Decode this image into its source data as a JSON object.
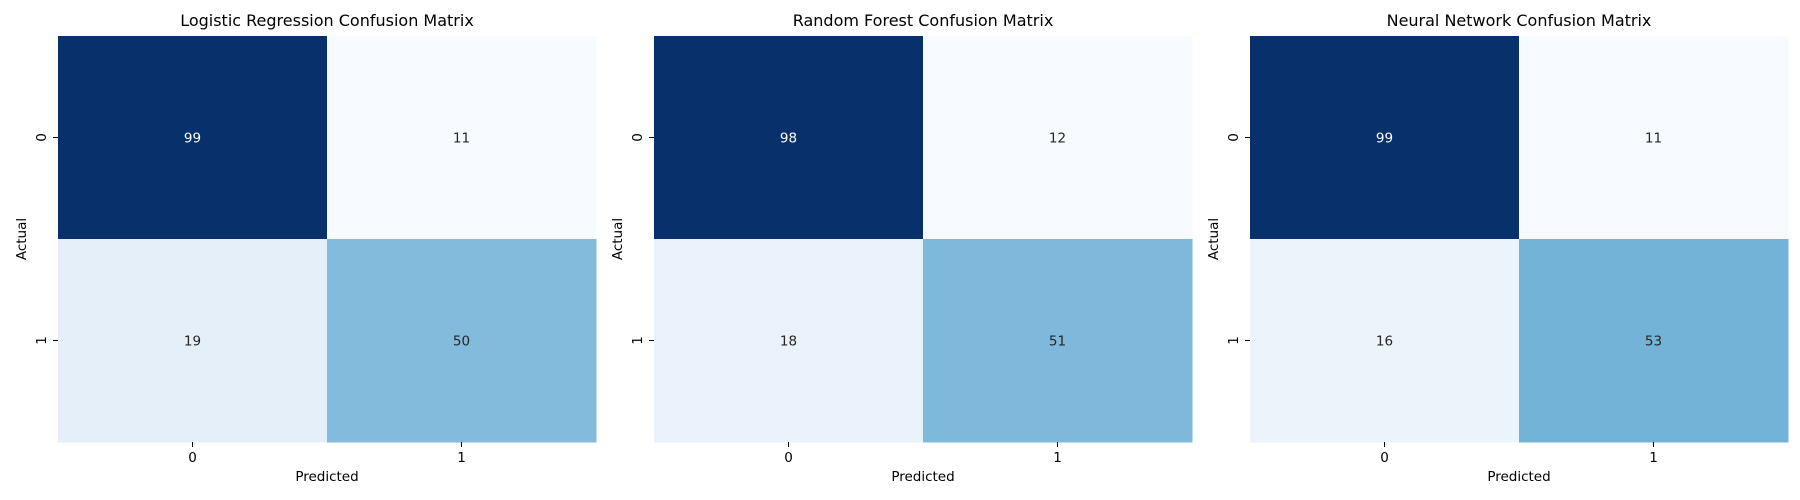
{
  "chart_data": [
    {
      "type": "heatmap",
      "title": "Logistic Regression Confusion Matrix",
      "xlabel": "Predicted",
      "ylabel": "Actual",
      "x_categories": [
        "0",
        "1"
      ],
      "y_categories": [
        "0",
        "1"
      ],
      "values": [
        [
          99,
          11
        ],
        [
          19,
          50
        ]
      ],
      "annotated": true,
      "colorbar": false,
      "colormap": "Blues"
    },
    {
      "type": "heatmap",
      "title": "Random Forest Confusion Matrix",
      "xlabel": "Predicted",
      "ylabel": "Actual",
      "x_categories": [
        "0",
        "1"
      ],
      "y_categories": [
        "0",
        "1"
      ],
      "values": [
        [
          98,
          12
        ],
        [
          18,
          51
        ]
      ],
      "annotated": true,
      "colorbar": false,
      "colormap": "Blues"
    },
    {
      "type": "heatmap",
      "title": "Neural Network Confusion Matrix",
      "xlabel": "Predicted",
      "ylabel": "Actual",
      "x_categories": [
        "0",
        "1"
      ],
      "y_categories": [
        "0",
        "1"
      ],
      "values": [
        [
          99,
          11
        ],
        [
          16,
          53
        ]
      ],
      "annotated": true,
      "colorbar": false,
      "colormap": "Blues"
    }
  ]
}
